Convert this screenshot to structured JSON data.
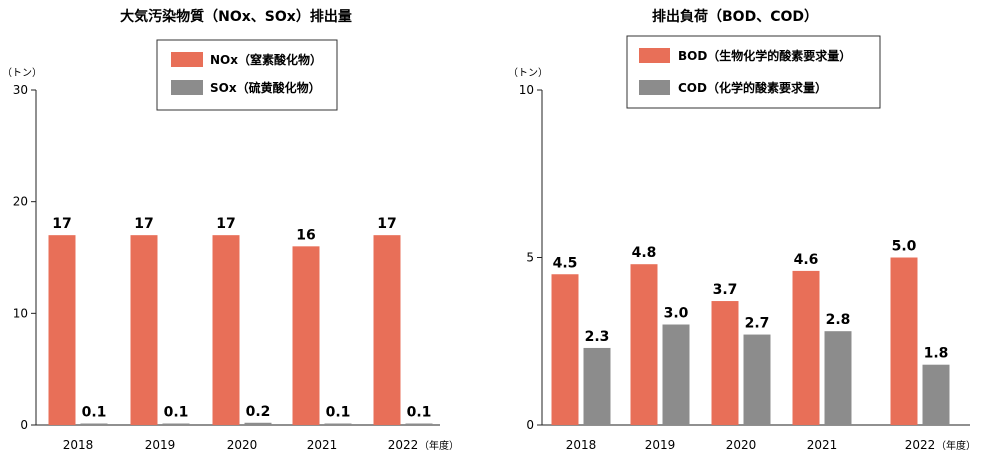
{
  "chart_data": [
    {
      "type": "bar",
      "title": "大気汚染物質（NOx、SOx）排出量",
      "y_unit": "（トン）",
      "x_suffix": "（年度）",
      "categories": [
        "2018",
        "2019",
        "2020",
        "2021",
        "2022"
      ],
      "yticks": [
        "0",
        "10",
        "20",
        "30"
      ],
      "ylim": [
        0,
        30
      ],
      "grid": false,
      "legend_placement": "top-center",
      "series": [
        {
          "name": "NOx（窒素酸化物）",
          "color": "#E86F58",
          "values": [
            17,
            17,
            17,
            16,
            17
          ],
          "labels": [
            "17",
            "17",
            "17",
            "16",
            "17"
          ]
        },
        {
          "name": "SOx（硫黄酸化物）",
          "color": "#8C8C8C",
          "values": [
            0.1,
            0.1,
            0.2,
            0.1,
            0.1
          ],
          "labels": [
            "0.1",
            "0.1",
            "0.2",
            "0.1",
            "0.1"
          ]
        }
      ]
    },
    {
      "type": "bar",
      "title": "排出負荷（BOD、COD）",
      "y_unit": "（トン）",
      "x_suffix": "（年度）",
      "categories": [
        "2018",
        "2019",
        "2020",
        "2021",
        "2022"
      ],
      "yticks": [
        "0",
        "5",
        "10"
      ],
      "ylim": [
        0,
        10
      ],
      "grid": false,
      "legend_placement": "top-center",
      "series": [
        {
          "name": "BOD（生物化学的酸素要求量）",
          "color": "#E86F58",
          "values": [
            4.5,
            4.8,
            3.7,
            4.6,
            5.0
          ],
          "labels": [
            "4.5",
            "4.8",
            "3.7",
            "4.6",
            "5.0"
          ]
        },
        {
          "name": "COD（化学的酸素要求量）",
          "color": "#8C8C8C",
          "values": [
            2.3,
            3.0,
            2.7,
            2.8,
            1.8
          ],
          "labels": [
            "2.3",
            "3.0",
            "2.7",
            "2.8",
            "1.8"
          ]
        }
      ]
    }
  ]
}
